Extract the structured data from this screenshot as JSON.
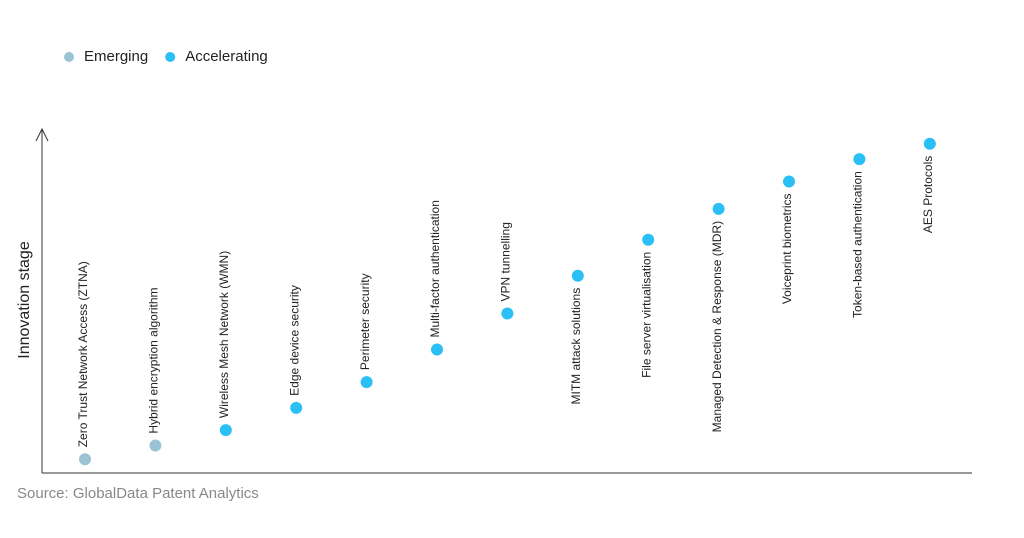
{
  "chart_data": {
    "type": "scatter",
    "y_label": "Innovation stage",
    "source": "Source: GlobalData Patent Analytics",
    "categories": [
      "Zero Trust Network Access (ZTNA)",
      "Hybrid encryption algorithm",
      "Wireless Mesh Network (WMN)",
      "Edge device security",
      "Perimeter security",
      "Multi-factor authentication",
      "VPN tunnelling",
      "MITM attack solutions",
      "File server virtualisation",
      "Managed Detection & Response (MDR)",
      "Voiceprint biometrics",
      "Token-based authentication",
      "AES Protocols"
    ],
    "series": [
      {
        "name": "Emerging",
        "color": "#9cc3d5",
        "values": [
          4,
          8,
          null,
          null,
          null,
          null,
          null,
          null,
          null,
          null,
          null,
          null,
          null
        ]
      },
      {
        "name": "Accelerating",
        "color": "#2bc0f5",
        "values": [
          null,
          null,
          12.5,
          19,
          26.5,
          36,
          46.5,
          57.5,
          68,
          77,
          85,
          91.5,
          96
        ]
      }
    ],
    "ylim": [
      0,
      100
    ]
  }
}
